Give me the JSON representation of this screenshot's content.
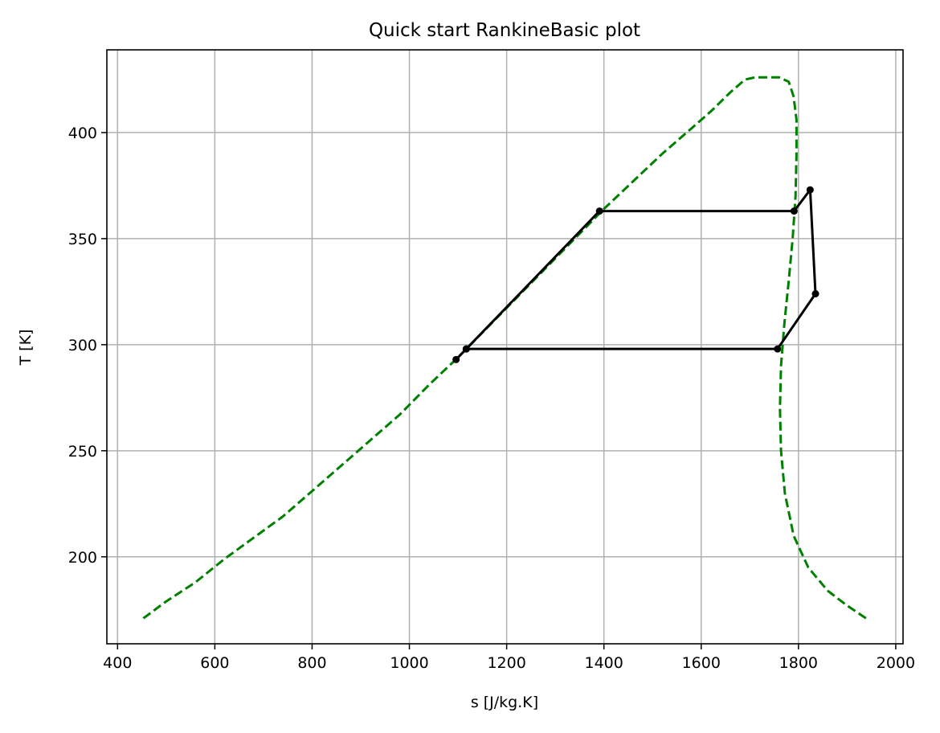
{
  "chart_data": {
    "type": "line",
    "title": "Quick start RankineBasic plot",
    "xlabel": "s [J/kg.K]",
    "ylabel": "T [K]",
    "xlim": [
      378,
      2015
    ],
    "ylim": [
      159,
      439
    ],
    "xticks": [
      400,
      600,
      800,
      1000,
      1200,
      1400,
      1600,
      1800,
      2000
    ],
    "yticks": [
      200,
      250,
      300,
      350,
      400
    ],
    "grid": true,
    "colors": {
      "saturation": "#008000",
      "cycle": "#000000",
      "grid": "#b0b0b0",
      "axes": "#000000"
    },
    "series": [
      {
        "style": "dashed",
        "color": "#008000",
        "points": [
          [
            453,
            171
          ],
          [
            500,
            179
          ],
          [
            560,
            188
          ],
          [
            620,
            199
          ],
          [
            680,
            209
          ],
          [
            740,
            219
          ],
          [
            800,
            231
          ],
          [
            860,
            243
          ],
          [
            920,
            255
          ],
          [
            980,
            267
          ],
          [
            1040,
            281
          ],
          [
            1100,
            294
          ],
          [
            1160,
            308
          ],
          [
            1220,
            322
          ],
          [
            1280,
            336
          ],
          [
            1340,
            350
          ],
          [
            1400,
            364
          ],
          [
            1460,
            377
          ],
          [
            1520,
            390
          ],
          [
            1580,
            402
          ],
          [
            1620,
            410
          ],
          [
            1660,
            419
          ],
          [
            1690,
            425
          ],
          [
            1710,
            426
          ],
          [
            1760,
            426
          ],
          [
            1780,
            424
          ],
          [
            1790,
            417
          ],
          [
            1796,
            406
          ],
          [
            1796,
            390
          ],
          [
            1794,
            370
          ],
          [
            1788,
            350
          ],
          [
            1780,
            330
          ],
          [
            1771,
            310
          ],
          [
            1764,
            290
          ],
          [
            1762,
            270
          ],
          [
            1764,
            250
          ],
          [
            1772,
            230
          ],
          [
            1790,
            210
          ],
          [
            1820,
            195
          ],
          [
            1860,
            184
          ],
          [
            1900,
            177
          ],
          [
            1939,
            171
          ]
        ]
      },
      {
        "style": "solid",
        "color": "#000000",
        "marker": "dot",
        "points": [
          [
            1096,
            293
          ],
          [
            1117,
            298
          ],
          [
            1391,
            363
          ],
          [
            1791,
            363
          ],
          [
            1824,
            373
          ],
          [
            1835,
            324
          ],
          [
            1757,
            298
          ],
          [
            1117,
            298
          ]
        ]
      }
    ]
  }
}
